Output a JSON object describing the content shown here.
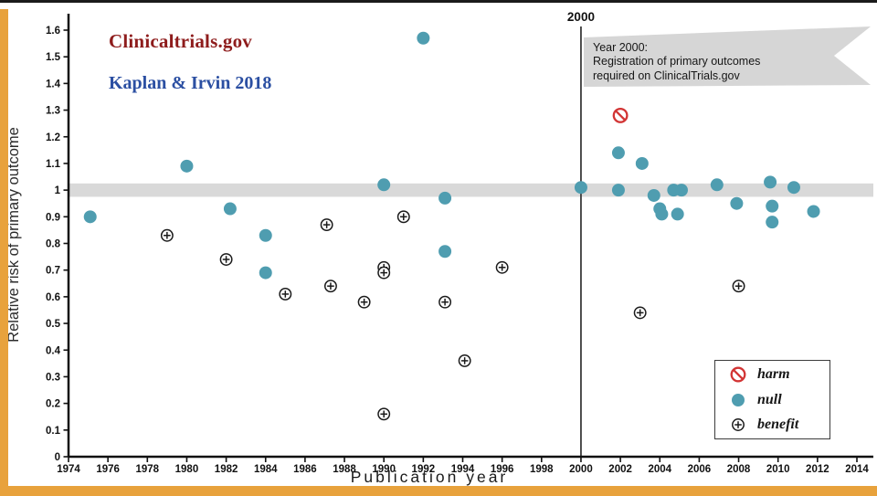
{
  "slide": {
    "title_line1": "Clinicaltrials.gov",
    "title_line2": "Kaplan & Irvin 2018",
    "title_line1_color": "#8e1c1c",
    "title_line2_color": "#2b4fa2",
    "accent_color": "#e8a23c"
  },
  "annotation": {
    "vline_label": "2000",
    "flag_lines": [
      "Year 2000:",
      "Registration of primary outcomes",
      "required on ClinicalTrials.gov"
    ],
    "flag_color": "#d6d6d6"
  },
  "legend": {
    "items": [
      {
        "label": "harm",
        "marker": "no-sign",
        "color": "#d23434"
      },
      {
        "label": "null",
        "marker": "filled-circle",
        "color": "#4f9db0"
      },
      {
        "label": "benefit",
        "marker": "plus-circle",
        "color": "#1a1a1a"
      }
    ]
  },
  "chart_data": {
    "type": "scatter",
    "title": "",
    "xlabel": "Publication year",
    "ylabel": "Relative risk of primary outcome",
    "xlim": [
      1974,
      2014
    ],
    "ylim": [
      0,
      1.6
    ],
    "xticks": [
      1974,
      1976,
      1978,
      1980,
      1982,
      1984,
      1986,
      1988,
      1990,
      1992,
      1994,
      1996,
      1998,
      2000,
      2002,
      2004,
      2006,
      2008,
      2010,
      2012,
      2014
    ],
    "yticks": [
      0,
      0.1,
      0.2,
      0.3,
      0.4,
      0.5,
      0.6,
      0.7,
      0.8,
      0.9,
      1,
      1.1,
      1.2,
      1.3,
      1.4,
      1.5,
      1.6
    ],
    "grid": false,
    "legend_position": "bottom-right",
    "reference_band": {
      "center": 1.0,
      "half_width": 0.025,
      "color": "#d9d9d9"
    },
    "vline": {
      "x": 2000,
      "label": "2000"
    },
    "series": [
      {
        "name": "harm",
        "marker": "no-sign",
        "color": "#d23434",
        "points": [
          [
            2002,
            1.28
          ]
        ]
      },
      {
        "name": "null",
        "marker": "filled-circle",
        "color": "#4f9db0",
        "points": [
          [
            1975.1,
            0.9
          ],
          [
            1980,
            1.09
          ],
          [
            1982.2,
            0.93
          ],
          [
            1984,
            0.83
          ],
          [
            1984,
            0.69
          ],
          [
            1990,
            1.02
          ],
          [
            1992,
            1.57
          ],
          [
            1993.1,
            0.97
          ],
          [
            1993.1,
            0.77
          ],
          [
            2000,
            1.01
          ],
          [
            2001.9,
            1.14
          ],
          [
            2001.9,
            1.0
          ],
          [
            2003.1,
            1.1
          ],
          [
            2003.7,
            0.98
          ],
          [
            2004.0,
            0.93
          ],
          [
            2004.1,
            0.91
          ],
          [
            2004.7,
            1.0
          ],
          [
            2005.1,
            1.0
          ],
          [
            2004.9,
            0.91
          ],
          [
            2006.9,
            1.02
          ],
          [
            2007.9,
            0.95
          ],
          [
            2009.6,
            1.03
          ],
          [
            2009.7,
            0.94
          ],
          [
            2009.7,
            0.88
          ],
          [
            2010.8,
            1.01
          ],
          [
            2011.8,
            0.92
          ]
        ]
      },
      {
        "name": "benefit",
        "marker": "plus-circle",
        "color": "#1a1a1a",
        "points": [
          [
            1979,
            0.83
          ],
          [
            1982,
            0.74
          ],
          [
            1985,
            0.61
          ],
          [
            1987.1,
            0.87
          ],
          [
            1987.3,
            0.64
          ],
          [
            1989,
            0.58
          ],
          [
            1990,
            0.71
          ],
          [
            1990,
            0.69
          ],
          [
            1990,
            0.16
          ],
          [
            1991,
            0.9
          ],
          [
            1993.1,
            0.58
          ],
          [
            1994.1,
            0.36
          ],
          [
            1996,
            0.71
          ],
          [
            2003,
            0.54
          ],
          [
            2008,
            0.64
          ]
        ]
      }
    ]
  }
}
